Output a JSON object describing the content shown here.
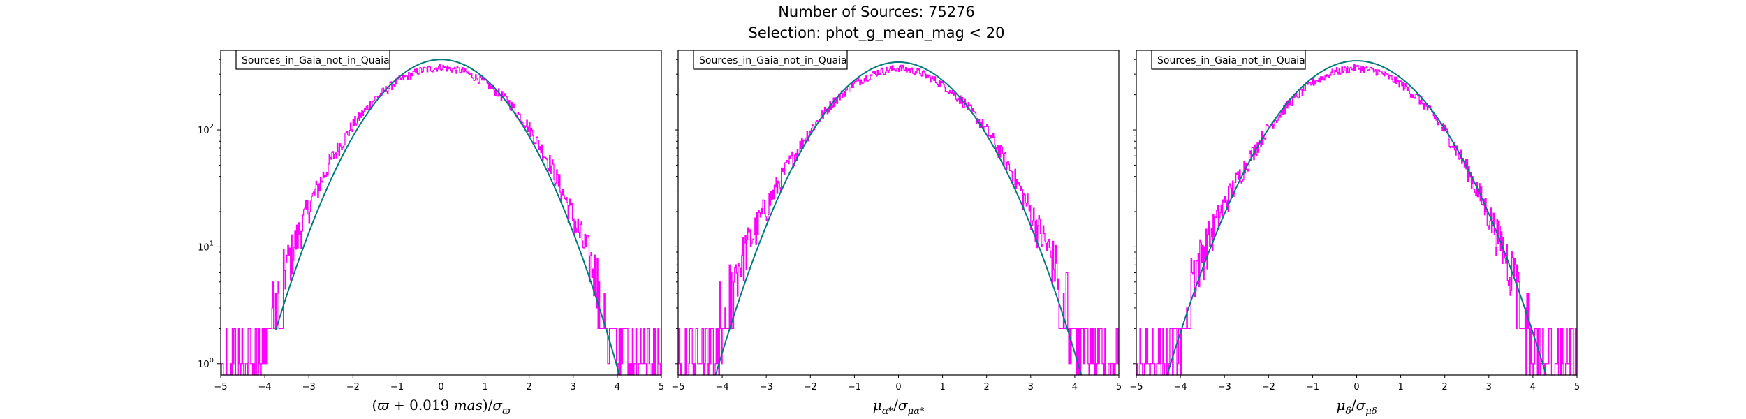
{
  "figure": {
    "title_line1": "Number of Sources: 75276",
    "title_line2": "Selection: phot_g_mean_mag < 20"
  },
  "colors": {
    "histogram": "#ff00ff",
    "gaussian": "#007b7b",
    "frame": "#000000"
  },
  "chart_data": [
    {
      "type": "line",
      "legend": "Sources_in_Gaia_not_in_Quaia",
      "legend_placement": "top-left",
      "xlabel_parts": [
        "(",
        "ϖ",
        " + 0.019 ",
        "mas",
        ")/",
        "σ",
        "ϖ"
      ],
      "xlim": [
        -5,
        5
      ],
      "ylim": [
        0.8,
        480
      ],
      "yscale": "log",
      "x_ticks": [
        "−5",
        "−4",
        "−3",
        "−2",
        "−1",
        "0",
        "1",
        "2",
        "3",
        "4",
        "5"
      ],
      "y_ticks": [
        {
          "value": 1,
          "base": "10",
          "exp": "0"
        },
        {
          "value": 10,
          "base": "10",
          "exp": "1"
        },
        {
          "value": 100,
          "base": "10",
          "exp": "2"
        }
      ],
      "grid": false,
      "series": [
        {
          "kind": "histogram",
          "x": [
            -5,
            -4.5,
            -4,
            -3.5,
            -3,
            -2.5,
            -2,
            -1.5,
            -1,
            -0.5,
            0,
            0.5,
            1,
            1.5,
            2,
            2.5,
            3,
            3.5,
            4,
            4.5,
            5
          ],
          "y": [
            1,
            1.3,
            2.5,
            7,
            22,
            55,
            110,
            185,
            260,
            320,
            345,
            320,
            255,
            180,
            105,
            50,
            18,
            6,
            2.2,
            1.3,
            1
          ]
        },
        {
          "kind": "gaussian",
          "x": [
            -3.75,
            -3,
            -2,
            -1,
            0,
            1,
            2,
            3,
            4.05
          ],
          "y": [
            0.8,
            26,
            140,
            320,
            400,
            320,
            140,
            26,
            0.8
          ]
        }
      ]
    },
    {
      "type": "line",
      "legend": "Sources_in_Gaia_not_in_Quaia",
      "legend_placement": "top-left",
      "xlabel_parts": [
        "μ",
        "α*",
        "/",
        "σ",
        "μα*"
      ],
      "xlim": [
        -5,
        5
      ],
      "ylim": [
        0.8,
        480
      ],
      "yscale": "log",
      "x_ticks": [
        "−5",
        "−4",
        "−3",
        "−2",
        "−1",
        "0",
        "1",
        "2",
        "3",
        "4",
        "5"
      ],
      "grid": false,
      "series": [
        {
          "kind": "histogram",
          "x": [
            -5,
            -4.5,
            -4,
            -3.5,
            -3,
            -2.5,
            -2,
            -1.5,
            -1,
            -0.5,
            0,
            0.5,
            1,
            1.5,
            2,
            2.5,
            3,
            3.5,
            4,
            4.5,
            5
          ],
          "y": [
            1,
            1.6,
            3.5,
            9,
            22,
            50,
            100,
            170,
            250,
            310,
            340,
            310,
            245,
            170,
            100,
            50,
            20,
            8,
            3,
            1.6,
            1
          ]
        },
        {
          "kind": "gaussian",
          "x": [
            -4.15,
            -3,
            -2,
            -1,
            0,
            1,
            2,
            3,
            4.15
          ],
          "y": [
            0.8,
            30,
            150,
            320,
            380,
            320,
            150,
            30,
            0.8
          ]
        }
      ]
    },
    {
      "type": "line",
      "legend": "Sources_in_Gaia_not_in_Quaia",
      "legend_placement": "top-left",
      "xlabel_parts": [
        "μ",
        "δ",
        "/",
        "σ",
        "μδ"
      ],
      "xlim": [
        -5,
        5
      ],
      "ylim": [
        0.8,
        480
      ],
      "yscale": "log",
      "x_ticks": [
        "−5",
        "−4",
        "−3",
        "−2",
        "−1",
        "0",
        "1",
        "2",
        "3",
        "4",
        "5"
      ],
      "grid": false,
      "series": [
        {
          "kind": "histogram",
          "x": [
            -5,
            -4.5,
            -4,
            -3.5,
            -3,
            -2.5,
            -2,
            -1.5,
            -1,
            -0.5,
            0,
            0.5,
            1,
            1.5,
            2,
            2.5,
            3,
            3.5,
            4,
            4.5,
            5
          ],
          "y": [
            1,
            1.5,
            3.5,
            9,
            23,
            52,
            105,
            175,
            255,
            315,
            340,
            315,
            250,
            172,
            100,
            48,
            19,
            7,
            2.6,
            1.4,
            1
          ]
        },
        {
          "kind": "gaussian",
          "x": [
            -4.3,
            -3,
            -2,
            -1,
            0,
            1,
            2,
            3,
            4.3
          ],
          "y": [
            0.8,
            30,
            150,
            320,
            390,
            320,
            150,
            30,
            0.8
          ]
        }
      ]
    }
  ]
}
